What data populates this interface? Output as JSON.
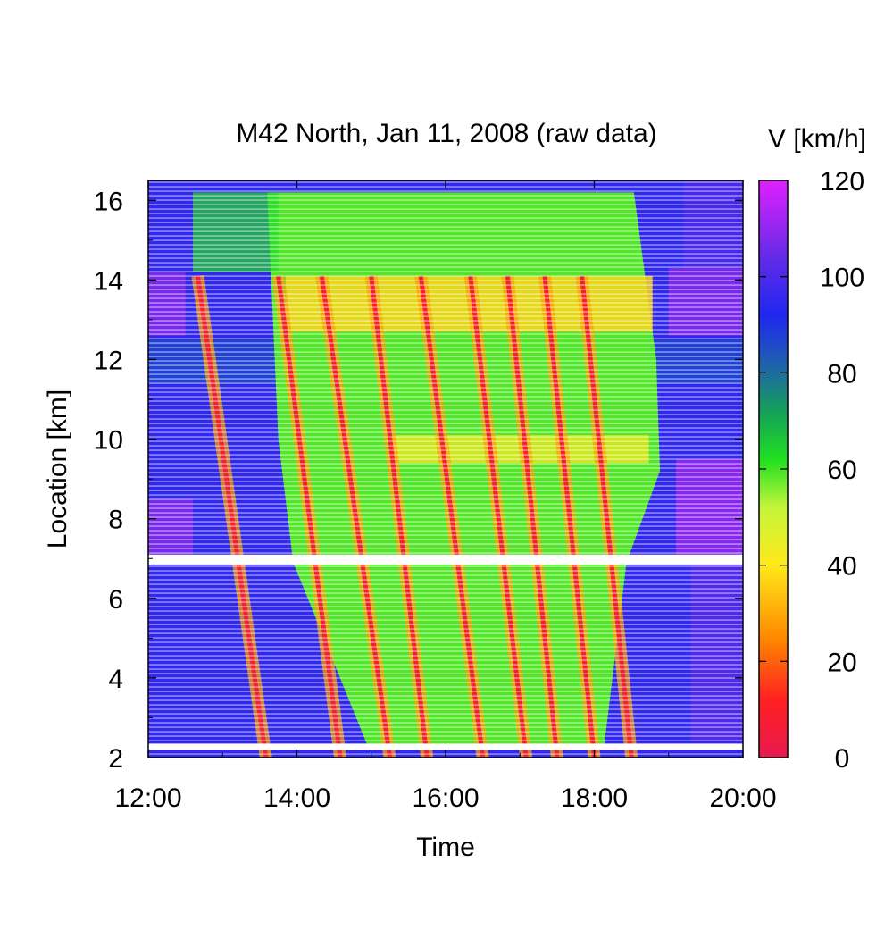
{
  "chart_data": {
    "type": "heatmap",
    "title": "M42 North, Jan 11, 2008 (raw data)",
    "xlabel": "Time",
    "ylabel": "Location [km]",
    "x_ticks": [
      "12:00",
      "14:00",
      "16:00",
      "18:00",
      "20:00"
    ],
    "x_range_hours": [
      12,
      20
    ],
    "y_ticks": [
      2,
      4,
      6,
      8,
      10,
      12,
      14,
      16
    ],
    "y_range": [
      2,
      16.5
    ],
    "colorbar": {
      "label": "V [km/h]",
      "range": [
        0,
        120
      ],
      "ticks": [
        0,
        20,
        40,
        60,
        80,
        100,
        120
      ],
      "stops": [
        {
          "v": 0,
          "color": "#e8194f"
        },
        {
          "v": 12,
          "color": "#ff2020"
        },
        {
          "v": 25,
          "color": "#ff8a00"
        },
        {
          "v": 40,
          "color": "#ffe81a"
        },
        {
          "v": 52,
          "color": "#c4f53a"
        },
        {
          "v": 62,
          "color": "#20e020"
        },
        {
          "v": 72,
          "color": "#14a05a"
        },
        {
          "v": 82,
          "color": "#1f5fb0"
        },
        {
          "v": 92,
          "color": "#1f28f0"
        },
        {
          "v": 105,
          "color": "#6a2ae8"
        },
        {
          "v": 120,
          "color": "#e020ff"
        }
      ]
    },
    "data_gaps_km": [
      [
        6.85,
        7.1
      ],
      [
        2.2,
        2.35
      ]
    ],
    "congested_region": {
      "start_time": "13:45",
      "end_time": "18:50",
      "km_range": [
        2.3,
        14.1
      ],
      "mean_speed_kmh": 45
    },
    "jam_waves": [
      {
        "time_at_top": "12:40",
        "time_at_bottom": "13:35"
      },
      {
        "time_at_top": "13:45",
        "time_at_bottom": "14:35"
      },
      {
        "time_at_top": "14:20",
        "time_at_bottom": "15:15"
      },
      {
        "time_at_top": "15:00",
        "time_at_bottom": "15:45"
      },
      {
        "time_at_top": "15:40",
        "time_at_bottom": "16:30"
      },
      {
        "time_at_top": "16:20",
        "time_at_bottom": "17:05"
      },
      {
        "time_at_top": "16:50",
        "time_at_bottom": "17:30"
      },
      {
        "time_at_top": "17:20",
        "time_at_bottom": "18:00"
      },
      {
        "time_at_top": "17:50",
        "time_at_bottom": "18:30"
      }
    ]
  }
}
